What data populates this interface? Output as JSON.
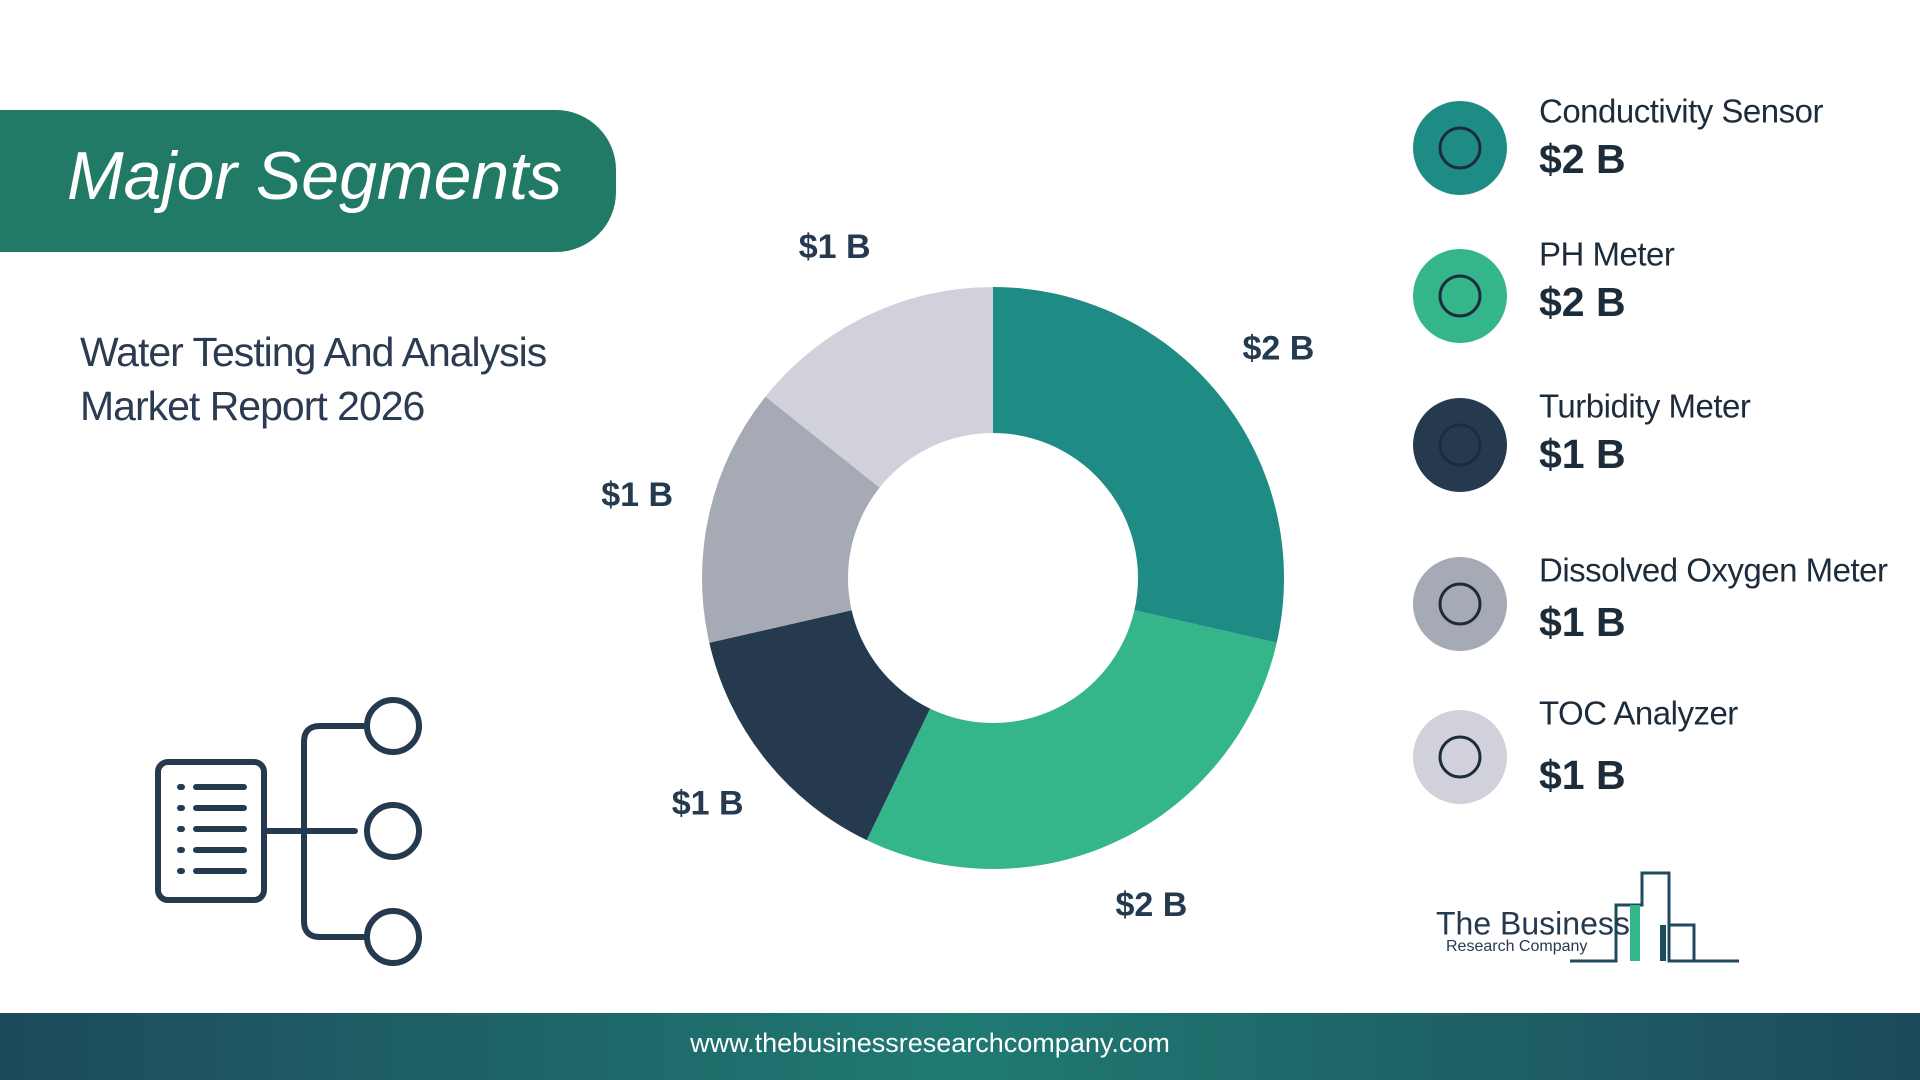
{
  "chart_data": {
    "type": "donut",
    "title": "Major Segments",
    "subtitle": "Water Testing And Analysis Market Report 2026",
    "categories": [
      "Conductivity Sensor",
      "PH Meter",
      "Turbidity Meter",
      "Dissolved Oxygen Meter",
      "TOC Analyzer"
    ],
    "values": [
      2,
      2,
      1,
      1,
      1
    ],
    "value_labels": [
      "$2 B",
      "$2 B",
      "$1 B",
      "$1 B",
      "$1 B"
    ],
    "colors": [
      "#1e8c84",
      "#34b58a",
      "#263a4f",
      "#a6aab5",
      "#d0d1da"
    ]
  },
  "logo": {
    "line1": "The Business",
    "line2": "Research Company"
  },
  "footer": {
    "url": "www.thebusinessresearchcompany.com"
  }
}
